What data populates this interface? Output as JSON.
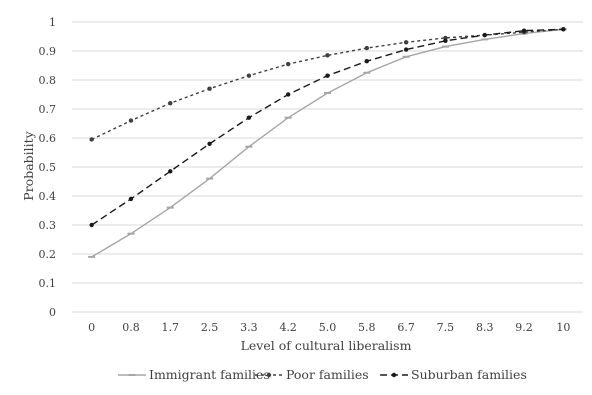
{
  "chart_data": {
    "type": "line",
    "xlabel": "Level of cultural liberalism",
    "ylabel": "Probability",
    "categories": [
      "0",
      "0.8",
      "1.7",
      "2.5",
      "3.3",
      "4.2",
      "5.0",
      "5.8",
      "6.7",
      "7.5",
      "8.3",
      "9.2",
      "10"
    ],
    "ylim": [
      0,
      1
    ],
    "yticks": [
      "0",
      "0.1",
      "0.2",
      "0.3",
      "0.4",
      "0.5",
      "0.6",
      "0.7",
      "0.8",
      "0.9",
      "1"
    ],
    "grid": "horizontal",
    "legend_position": "bottom",
    "series": [
      {
        "name": "Immigrant families",
        "color": "#a6a6a6",
        "style": "solid",
        "marker": "dash",
        "values": [
          0.19,
          0.27,
          0.36,
          0.46,
          0.57,
          0.67,
          0.755,
          0.825,
          0.88,
          0.915,
          0.94,
          0.96,
          0.975
        ]
      },
      {
        "name": "Poor families",
        "color": "#404040",
        "style": "dotted",
        "marker": "dot",
        "values": [
          0.595,
          0.66,
          0.72,
          0.77,
          0.815,
          0.855,
          0.885,
          0.91,
          0.93,
          0.945,
          0.955,
          0.965,
          0.975
        ]
      },
      {
        "name": "Suburban families",
        "color": "#1a1a1a",
        "style": "dashed",
        "marker": "dot",
        "values": [
          0.3,
          0.39,
          0.485,
          0.58,
          0.67,
          0.75,
          0.815,
          0.865,
          0.905,
          0.935,
          0.955,
          0.97,
          0.975
        ]
      }
    ]
  }
}
